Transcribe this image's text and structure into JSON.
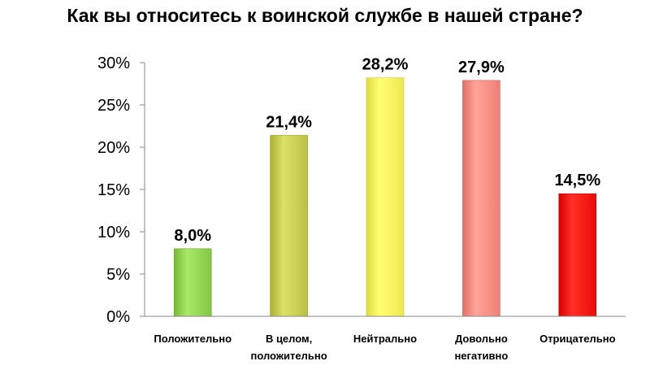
{
  "chart_data": {
    "type": "bar",
    "title": "Как вы относитесь к воинской службе в нашей стране?",
    "categories": [
      [
        "Положительно"
      ],
      [
        "В целом,",
        "положительно"
      ],
      [
        "Нейтрально"
      ],
      [
        "Довольно",
        "негативно"
      ],
      [
        "Отрицательно"
      ]
    ],
    "values": [
      8.0,
      21.4,
      28.2,
      27.9,
      14.5
    ],
    "data_labels": [
      "8,0%",
      "21,4%",
      "28,2%",
      "27,9%",
      "14,5%"
    ],
    "bar_colors": [
      "#8fd14f",
      "#c3c94e",
      "#f7f25a",
      "#f98a80",
      "#f2160f"
    ],
    "ylim": [
      0,
      30
    ],
    "yticks": [
      0,
      5,
      10,
      15,
      20,
      25,
      30
    ],
    "ytick_labels": [
      "0%",
      "5%",
      "10%",
      "15%",
      "20%",
      "25%",
      "30%"
    ],
    "xlabel": "",
    "ylabel": "",
    "grid": false,
    "legend": "none"
  }
}
